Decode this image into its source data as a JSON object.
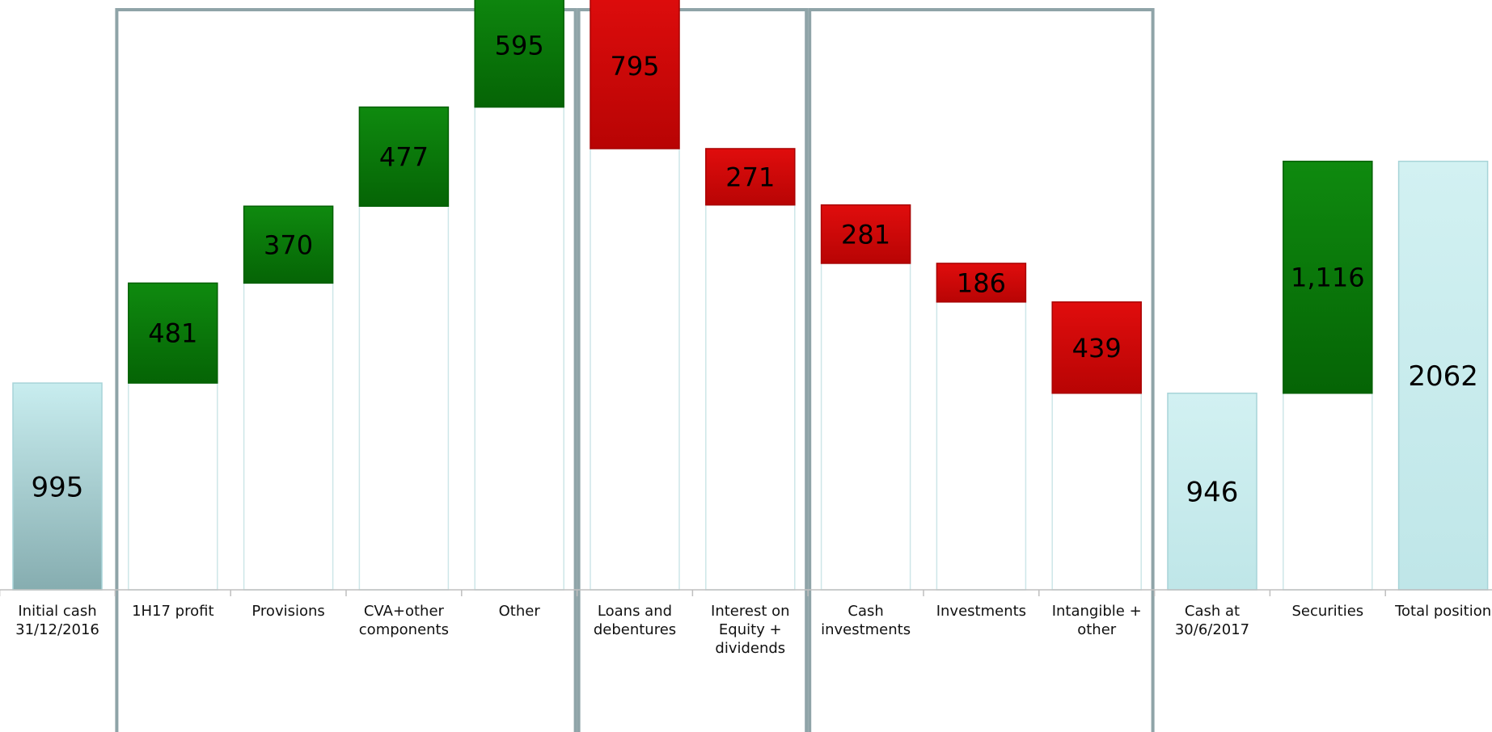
{
  "chart_data": {
    "type": "bar",
    "subtype": "waterfall",
    "title": "",
    "xlabel": "",
    "ylabel": "",
    "ylim": [
      0,
      3000
    ],
    "grid": false,
    "legend": "none",
    "colors": {
      "total": "#c5ecee",
      "increase": "#0b7a0b",
      "decrease": "#d10707",
      "connector": "#cde6e8",
      "group_box": "#8fa4a8"
    },
    "categories": [
      [
        "Initial cash",
        "31/12/2016"
      ],
      [
        "1H17 profit"
      ],
      [
        "Provisions"
      ],
      [
        "CVA+other",
        "components"
      ],
      [
        "Other"
      ],
      [
        "Loans and",
        "debentures"
      ],
      [
        "Interest on",
        "Equity +",
        "dividends"
      ],
      [
        "Cash",
        "investments"
      ],
      [
        "Investments"
      ],
      [
        "Intangible +",
        "other"
      ],
      [
        "Cash at",
        "30/6/2017"
      ],
      [
        "Securities"
      ],
      [
        "Total position"
      ]
    ],
    "values": [
      995,
      481,
      370,
      477,
      595,
      795,
      271,
      281,
      186,
      439,
      946,
      1116,
      2062
    ],
    "value_labels": [
      "995",
      "481",
      "370",
      "477",
      "595",
      "795",
      "271",
      "281",
      "186",
      "439",
      "946",
      "1,116",
      "2062"
    ],
    "kinds": [
      "total",
      "increase",
      "increase",
      "increase",
      "increase",
      "decrease",
      "decrease",
      "decrease",
      "decrease",
      "decrease",
      "total",
      "increase",
      "total"
    ],
    "bases": [
      0,
      995,
      1476,
      1846,
      2323,
      2123,
      1852,
      1571,
      1385,
      946,
      0,
      946,
      0
    ],
    "groups": [
      {
        "name": "",
        "first": 1,
        "last": 4
      },
      {
        "name": "",
        "first": 5,
        "last": 6
      },
      {
        "name": "",
        "first": 7,
        "last": 9
      }
    ]
  }
}
